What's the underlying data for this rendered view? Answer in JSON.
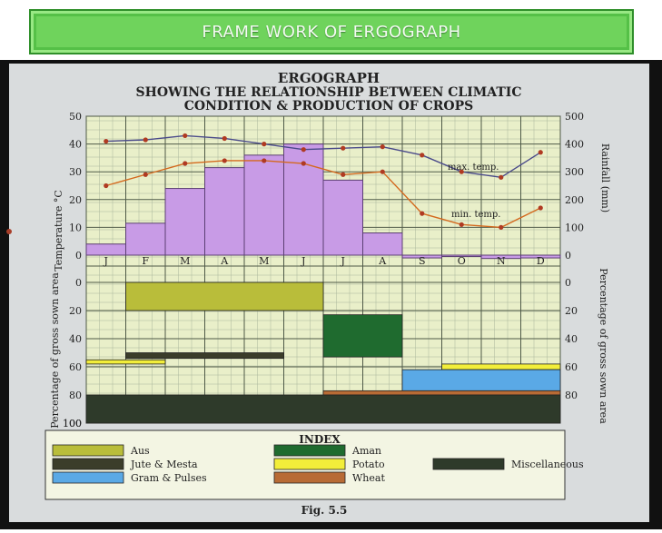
{
  "banner": {
    "title": "FRAME WORK OF ERGOGRAPH"
  },
  "colors": {
    "aus": "#b9bd3a",
    "jute_mesta": "#3b3d2a",
    "gram_pulses": "#5aa9e6",
    "aman": "#1f6b2f",
    "potato": "#f2ee3a",
    "wheat": "#b86b35",
    "miscellaneous": "#2e3a2a",
    "rainfall_bar": "#c89be6",
    "max_temp": "#4a4a8a",
    "min_temp": "#d4691e",
    "grid_fill": "#e9efc9"
  },
  "chart_data": [
    {
      "type": "line",
      "title": "ERGOGRAPH",
      "subtitle": "SHOWING THE RELATIONSHIP BETWEEN CLIMATIC CONDITION & PRODUCTION OF CROPS",
      "categories": [
        "J",
        "F",
        "M",
        "A",
        "M",
        "J",
        "J",
        "A",
        "S",
        "O",
        "N",
        "D"
      ],
      "ylabel": "Temperature °C",
      "ylim": [
        0,
        50
      ],
      "yticks": [
        0,
        10,
        20,
        30,
        40,
        50
      ],
      "y2label": "Rainfall (mm)",
      "y2lim": [
        0,
        500
      ],
      "y2ticks": [
        0,
        100,
        200,
        300,
        400,
        500
      ],
      "series": [
        {
          "name": "max. temp.",
          "axis": "temperature",
          "values": [
            41,
            41.5,
            43,
            42,
            40,
            38,
            38.5,
            39,
            36,
            30,
            28,
            37
          ]
        },
        {
          "name": "min. temp.",
          "axis": "temperature",
          "values": [
            25,
            29,
            33,
            34,
            34,
            33,
            29,
            30,
            15,
            11,
            10,
            17
          ]
        },
        {
          "name": "Rainfall",
          "axis": "rainfall",
          "chart": "bar",
          "values": [
            40,
            115,
            240,
            315,
            360,
            400,
            270,
            80,
            -10,
            -5,
            -12,
            -10
          ]
        }
      ],
      "annotations": [
        "max. temp.",
        "min. temp."
      ],
      "grid": true
    },
    {
      "type": "bar",
      "subtype": "gantt",
      "xlabel": "",
      "ylabel": "Percentage of gross sown area",
      "y2label": "Percentage of gross sown area",
      "ylim": [
        0,
        100
      ],
      "yticks": [
        0,
        20,
        40,
        60,
        80,
        100
      ],
      "y2ticks": [
        0,
        20,
        40,
        60,
        80
      ],
      "series": [
        {
          "name": "Aus",
          "start_month": 2,
          "end_month": 6,
          "from_pct": 0,
          "to_pct": 20
        },
        {
          "name": "Aman",
          "start_month": 7,
          "end_month": 8,
          "from_pct": 23,
          "to_pct": 53
        },
        {
          "name": "Jute & Mesta",
          "start_month": 2,
          "end_month": 5,
          "from_pct": 50,
          "to_pct": 54
        },
        {
          "name": "Potato",
          "start_month": 1,
          "end_month": 2,
          "from_pct": 55,
          "to_pct": 58
        },
        {
          "name": "Potato",
          "start_month": 10,
          "end_month": 12,
          "from_pct": 58,
          "to_pct": 62
        },
        {
          "name": "Gram & Pulses",
          "start_month": 9,
          "end_month": 12,
          "from_pct": 62,
          "to_pct": 77
        },
        {
          "name": "Wheat",
          "start_month": 7,
          "end_month": 12,
          "from_pct": 77,
          "to_pct": 80
        },
        {
          "name": "Miscellaneous",
          "start_month": 1,
          "end_month": 12,
          "from_pct": 80,
          "to_pct": 100
        }
      ],
      "grid": true
    }
  ],
  "index": {
    "title": "INDEX",
    "items": [
      {
        "label": "Aus",
        "color_key": "aus"
      },
      {
        "label": "Jute & Mesta",
        "color_key": "jute_mesta"
      },
      {
        "label": "Gram & Pulses",
        "color_key": "gram_pulses"
      },
      {
        "label": "Aman",
        "color_key": "aman"
      },
      {
        "label": "Potato",
        "color_key": "potato"
      },
      {
        "label": "Wheat",
        "color_key": "wheat"
      },
      {
        "label": "Miscellaneous",
        "color_key": "miscellaneous"
      }
    ]
  },
  "caption": "Fig. 5.5"
}
